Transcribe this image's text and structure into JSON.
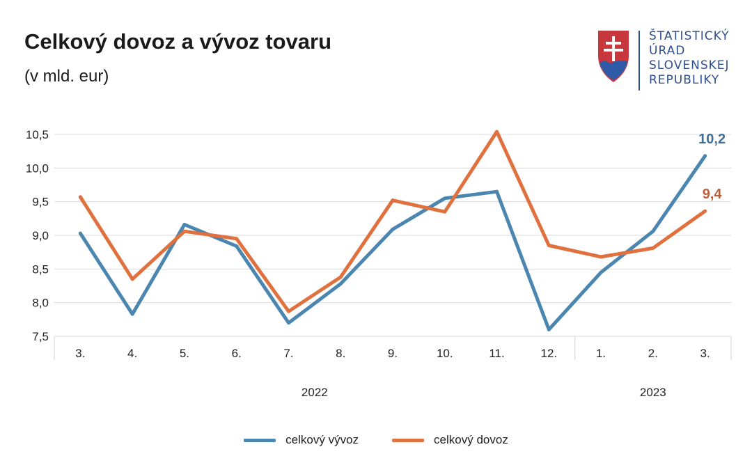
{
  "header": {
    "title": "Celkový dovoz a vývoz tovaru",
    "subtitle": "(v mld. eur)"
  },
  "logo": {
    "lines": [
      "ŠTATISTICKÝ",
      "ÚRAD",
      "SLOVENSKEJ",
      "REPUBLIKY"
    ],
    "colors": {
      "text": "#2f4f8f",
      "shield_red": "#c8373e",
      "shield_blue": "#2e5aa8",
      "cross": "#ffffff"
    }
  },
  "chart_data": {
    "type": "line",
    "categories": [
      "3.",
      "4.",
      "5.",
      "6.",
      "7.",
      "8.",
      "9.",
      "10.",
      "11.",
      "12.",
      "1.",
      "2.",
      "3."
    ],
    "year_groups": [
      {
        "label": "2022",
        "from": 0,
        "to": 9
      },
      {
        "label": "2023",
        "from": 10,
        "to": 12
      }
    ],
    "ylim": [
      7.5,
      10.5
    ],
    "yticks": [
      "7,5",
      "8,0",
      "8,5",
      "9,0",
      "9,5",
      "10,0",
      "10,5"
    ],
    "ytick_values": [
      7.5,
      8.0,
      8.5,
      9.0,
      9.5,
      10.0,
      10.5
    ],
    "grid": true,
    "legend_position": "bottom",
    "series": [
      {
        "name": "celkový vývoz",
        "color": "#4a86b0",
        "values": [
          9.03,
          7.83,
          9.16,
          8.84,
          7.7,
          8.28,
          9.09,
          9.55,
          9.65,
          7.6,
          8.45,
          9.06,
          10.18
        ],
        "end_label": "10,2"
      },
      {
        "name": "celkový dovoz",
        "color": "#e0703e",
        "values": [
          9.57,
          8.35,
          9.06,
          8.95,
          7.87,
          8.38,
          9.52,
          9.35,
          10.54,
          8.85,
          8.68,
          8.81,
          9.36
        ],
        "end_label": "9,4"
      }
    ]
  }
}
